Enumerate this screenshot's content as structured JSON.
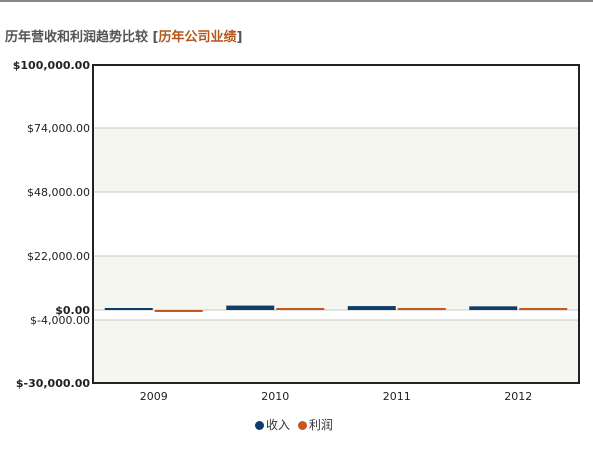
{
  "header": {
    "title": "历年营收和利润趋势比较",
    "bracket_open": "[",
    "link_label": "历年公司业绩",
    "bracket_close": "]"
  },
  "colors": {
    "revenue": "#0f3d6b",
    "profit": "#c8561f",
    "header_link": "#b5561a",
    "band": "#f6f6f1"
  },
  "chart_data": {
    "type": "bar",
    "categories": [
      "2009",
      "2010",
      "2011",
      "2012"
    ],
    "series": [
      {
        "name": "收入",
        "values": [
          600,
          1800,
          1600,
          1500
        ]
      },
      {
        "name": "利润",
        "values": [
          -300,
          200,
          100,
          200
        ]
      }
    ],
    "y_ticks": [
      {
        "value": 100000,
        "label": "$100,000.00"
      },
      {
        "value": 74000,
        "label": "$74,000.00"
      },
      {
        "value": 48000,
        "label": "$48,000.00"
      },
      {
        "value": 22000,
        "label": "$22,000.00"
      },
      {
        "value": 0,
        "label": "$0.00"
      },
      {
        "value": -4000,
        "label": "$-4,000.00"
      },
      {
        "value": -30000,
        "label": "$-30,000.00"
      }
    ],
    "ylim": [
      -30000,
      100000
    ],
    "grid": true,
    "legend_position": "bottom-center"
  }
}
